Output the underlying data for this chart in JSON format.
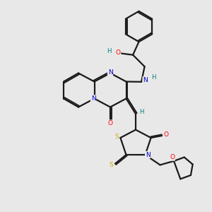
{
  "bg_color": "#e8e8e8",
  "atom_colors": {
    "C": "#000000",
    "N": "#0000cd",
    "O": "#ff0000",
    "S": "#ccaa00",
    "H": "#008080"
  },
  "bond_color": "#1a1a1a",
  "line_width": 1.6,
  "figsize": [
    3.0,
    3.0
  ],
  "dpi": 100
}
